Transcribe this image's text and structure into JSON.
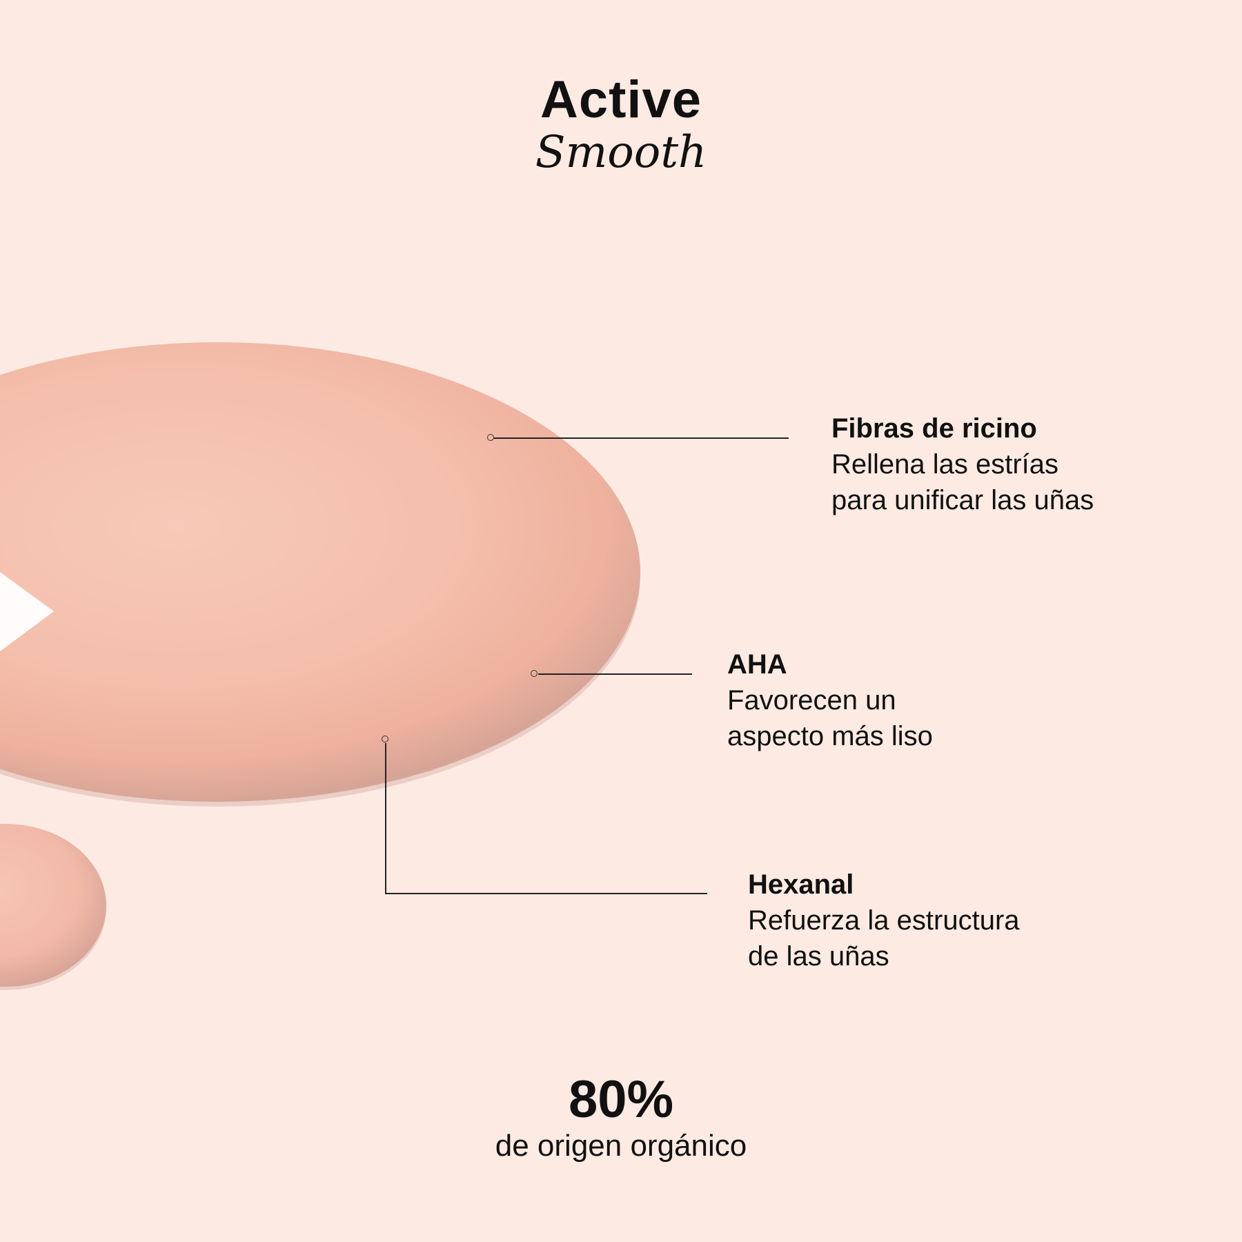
{
  "header": {
    "title": "Active",
    "subtitle": "Smooth"
  },
  "ingredients": [
    {
      "name": "Fibras de ricino",
      "line1": "Rellena las estrías",
      "line2": "para unificar las uñas"
    },
    {
      "name": "AHA",
      "line1": "Favorecen un",
      "line2": "aspecto más liso"
    },
    {
      "name": "Hexanal",
      "line1": "Refuerza la estructura",
      "line2": "de las uñas"
    }
  ],
  "stat": {
    "value": "80%",
    "label": "de origen orgánico"
  },
  "colors": {
    "background": "#fdebe3",
    "drop": "#f4bfac",
    "text": "#111111"
  }
}
